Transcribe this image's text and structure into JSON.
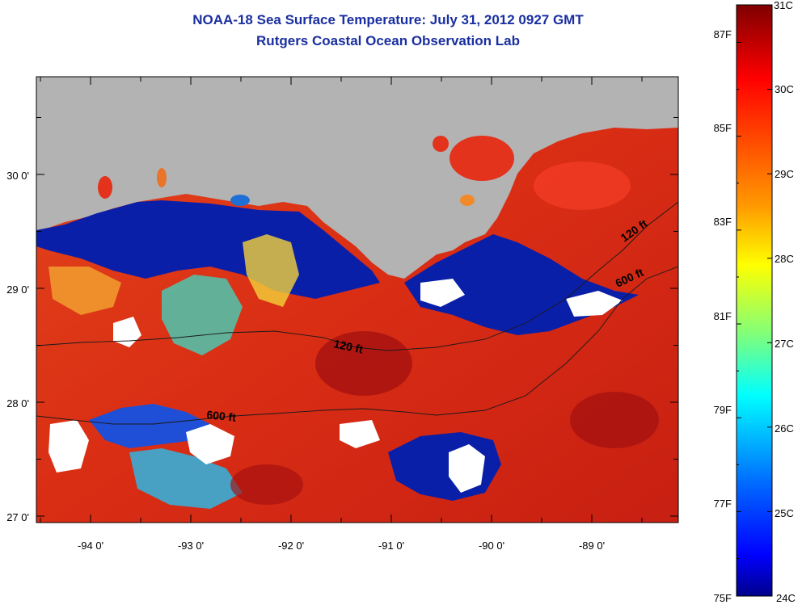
{
  "header": {
    "title": "NOAA-18 Sea Surface Temperature:  July 31, 2012 0927 GMT",
    "subtitle": "Rutgers Coastal Ocean Observation Lab"
  },
  "map": {
    "lon_labels": [
      "-94 0'",
      "-93 0'",
      "-92 0'",
      "-91 0'",
      "-90 0'",
      "-89 0'"
    ],
    "lat_labels": [
      "30 0'",
      "29 0'",
      "28 0'",
      "27 0'"
    ],
    "contour_labels": [
      "120 ft",
      "600 ft",
      "120 ft",
      "600 ft"
    ],
    "colors": {
      "land": "#b3b3b3",
      "cloud": "#ffffff",
      "cold": "#0a1fa8",
      "warm": "#e8361a",
      "hot": "#a31010"
    }
  },
  "colorbar": {
    "f_labels": [
      "87F",
      "85F",
      "83F",
      "81F",
      "79F",
      "77F",
      "75F"
    ],
    "c_labels": [
      "31C",
      "30C",
      "29C",
      "28C",
      "27C",
      "26C",
      "25C",
      "24C"
    ]
  }
}
